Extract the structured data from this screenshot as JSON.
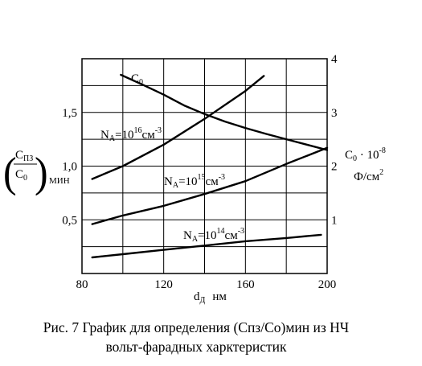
{
  "chart_data": {
    "type": "line",
    "xlabel_main": "d",
    "xlabel_sub": "Д",
    "xlabel_unit": "нм",
    "xlim": [
      80,
      200
    ],
    "x_ticks": [
      "80",
      "120",
      "160",
      "200"
    ],
    "ylim_left": [
      0,
      2
    ],
    "y_ticks_left": [
      "0,5",
      "1,0",
      "1,5"
    ],
    "ylim_right": [
      0,
      4
    ],
    "y_ticks_right": [
      "1",
      "2",
      "3",
      "4"
    ],
    "ylabel_left": {
      "numerator_main": "C",
      "numerator_sub": "ПЗ",
      "denominator_main": "C",
      "denominator_sub": "0",
      "suffix": "МИН"
    },
    "ylabel_right": {
      "line1_main": "C",
      "line1_sub": "0",
      "line1_rest": " · 10",
      "line1_sup": "-8",
      "line2_main": "Ф/см",
      "line2_sup": "2"
    },
    "grid": true,
    "series": [
      {
        "name": "C0",
        "label_main": "C",
        "label_sub": "0",
        "axis": "right",
        "x": [
          99,
          110,
          120,
          130,
          140,
          150,
          160,
          170,
          180,
          190,
          200
        ],
        "y": [
          3.7,
          3.51,
          3.33,
          3.13,
          2.97,
          2.83,
          2.71,
          2.6,
          2.5,
          2.4,
          2.3
        ]
      },
      {
        "name": "NA=10^16 cm^-3",
        "label_main": "N",
        "label_sub": "A",
        "label_mid": "=10",
        "label_sup1": "16",
        "label_unit": "см",
        "label_sup2": "-3",
        "axis": "left",
        "x": [
          85,
          100,
          120,
          140,
          160,
          169
        ],
        "y": [
          0.88,
          1.0,
          1.2,
          1.44,
          1.7,
          1.84
        ]
      },
      {
        "name": "NA=10^15 cm^-3",
        "label_main": "N",
        "label_sub": "A",
        "label_mid": "=10",
        "label_sup1": "15",
        "label_unit": "см",
        "label_sup2": "-3",
        "axis": "left",
        "x": [
          85,
          100,
          120,
          140,
          160,
          180,
          200
        ],
        "y": [
          0.46,
          0.54,
          0.63,
          0.74,
          0.86,
          1.02,
          1.17
        ]
      },
      {
        "name": "NA=10^14 cm^-3",
        "label_main": "N",
        "label_sub": "A",
        "label_mid": "=10",
        "label_sup1": "14",
        "label_unit": "см",
        "label_sup2": "-3",
        "axis": "left",
        "x": [
          85,
          100,
          120,
          140,
          160,
          180,
          197
        ],
        "y": [
          0.15,
          0.18,
          0.22,
          0.26,
          0.3,
          0.33,
          0.36
        ]
      }
    ]
  },
  "caption": {
    "line1": "Рис. 7 График для определения (Спз/Со)мин из НЧ",
    "line2": "вольт-фарадных харктеристик"
  }
}
